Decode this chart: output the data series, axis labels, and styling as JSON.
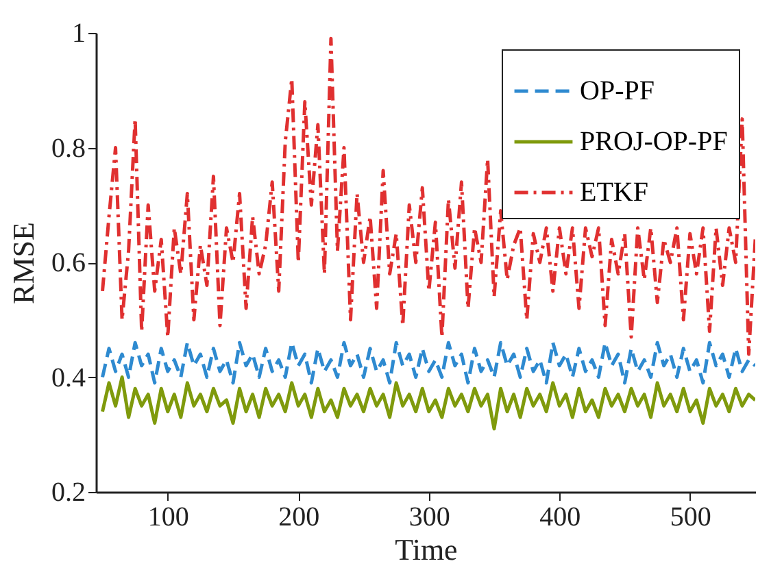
{
  "chart_data": {
    "type": "line",
    "xlabel": "Time",
    "ylabel": "RMSE",
    "x": [
      50,
      55,
      60,
      65,
      70,
      75,
      80,
      85,
      90,
      95,
      100,
      105,
      110,
      115,
      120,
      125,
      130,
      135,
      140,
      145,
      150,
      155,
      160,
      165,
      170,
      175,
      180,
      185,
      190,
      195,
      200,
      205,
      210,
      215,
      220,
      225,
      230,
      235,
      240,
      245,
      250,
      255,
      260,
      265,
      270,
      275,
      280,
      285,
      290,
      295,
      300,
      305,
      310,
      315,
      320,
      325,
      330,
      335,
      340,
      345,
      350,
      355,
      360,
      365,
      370,
      375,
      380,
      385,
      390,
      395,
      400,
      405,
      410,
      415,
      420,
      425,
      430,
      435,
      440,
      445,
      450,
      455,
      460,
      465,
      470,
      475,
      480,
      485,
      490,
      495,
      500,
      505,
      510,
      515,
      520,
      525,
      530,
      535,
      540,
      545,
      550
    ],
    "series": [
      {
        "name": "OP-PF",
        "color": "#2e8ad0",
        "line_style": "dashed",
        "values": [
          0.4,
          0.45,
          0.41,
          0.44,
          0.4,
          0.46,
          0.42,
          0.44,
          0.39,
          0.45,
          0.41,
          0.43,
          0.4,
          0.46,
          0.42,
          0.44,
          0.4,
          0.45,
          0.41,
          0.43,
          0.39,
          0.46,
          0.42,
          0.44,
          0.4,
          0.45,
          0.41,
          0.43,
          0.4,
          0.46,
          0.42,
          0.44,
          0.39,
          0.45,
          0.41,
          0.43,
          0.4,
          0.46,
          0.42,
          0.44,
          0.4,
          0.45,
          0.41,
          0.43,
          0.39,
          0.46,
          0.42,
          0.44,
          0.4,
          0.45,
          0.41,
          0.43,
          0.4,
          0.46,
          0.42,
          0.44,
          0.39,
          0.45,
          0.41,
          0.43,
          0.4,
          0.46,
          0.42,
          0.44,
          0.4,
          0.45,
          0.41,
          0.43,
          0.39,
          0.46,
          0.42,
          0.44,
          0.4,
          0.45,
          0.41,
          0.43,
          0.4,
          0.46,
          0.42,
          0.44,
          0.39,
          0.45,
          0.41,
          0.43,
          0.4,
          0.46,
          0.42,
          0.44,
          0.4,
          0.45,
          0.41,
          0.43,
          0.39,
          0.46,
          0.42,
          0.44,
          0.4,
          0.45,
          0.41,
          0.43,
          0.42
        ]
      },
      {
        "name": "PROJ-OP-PF",
        "color": "#7f9a0c",
        "line_style": "solid",
        "values": [
          0.34,
          0.39,
          0.35,
          0.4,
          0.33,
          0.38,
          0.35,
          0.37,
          0.32,
          0.38,
          0.34,
          0.37,
          0.33,
          0.39,
          0.35,
          0.37,
          0.34,
          0.38,
          0.35,
          0.36,
          0.32,
          0.38,
          0.34,
          0.37,
          0.33,
          0.38,
          0.35,
          0.37,
          0.34,
          0.39,
          0.35,
          0.37,
          0.33,
          0.38,
          0.34,
          0.36,
          0.33,
          0.38,
          0.35,
          0.37,
          0.34,
          0.38,
          0.35,
          0.37,
          0.33,
          0.39,
          0.35,
          0.37,
          0.34,
          0.38,
          0.34,
          0.36,
          0.33,
          0.38,
          0.35,
          0.37,
          0.34,
          0.38,
          0.35,
          0.37,
          0.31,
          0.38,
          0.34,
          0.37,
          0.33,
          0.38,
          0.35,
          0.37,
          0.34,
          0.39,
          0.35,
          0.37,
          0.33,
          0.38,
          0.34,
          0.36,
          0.33,
          0.38,
          0.35,
          0.37,
          0.34,
          0.38,
          0.35,
          0.37,
          0.33,
          0.39,
          0.35,
          0.37,
          0.34,
          0.38,
          0.34,
          0.36,
          0.32,
          0.38,
          0.35,
          0.37,
          0.34,
          0.38,
          0.35,
          0.37,
          0.36
        ]
      },
      {
        "name": "ETKF",
        "color": "#e03030",
        "line_style": "dashdot",
        "values": [
          0.55,
          0.68,
          0.8,
          0.5,
          0.62,
          0.85,
          0.48,
          0.7,
          0.55,
          0.64,
          0.47,
          0.66,
          0.58,
          0.72,
          0.5,
          0.63,
          0.56,
          0.75,
          0.49,
          0.66,
          0.6,
          0.72,
          0.52,
          0.68,
          0.58,
          0.63,
          0.74,
          0.55,
          0.81,
          0.92,
          0.6,
          0.88,
          0.7,
          0.84,
          0.58,
          0.99,
          0.62,
          0.8,
          0.5,
          0.72,
          0.6,
          0.68,
          0.52,
          0.76,
          0.58,
          0.65,
          0.49,
          0.7,
          0.6,
          0.73,
          0.55,
          0.67,
          0.47,
          0.71,
          0.59,
          0.74,
          0.52,
          0.66,
          0.6,
          0.78,
          0.54,
          0.69,
          0.57,
          0.63,
          0.66,
          0.5,
          0.65,
          0.6,
          0.66,
          0.55,
          0.66,
          0.58,
          0.66,
          0.52,
          0.66,
          0.61,
          0.66,
          0.49,
          0.64,
          0.58,
          0.65,
          0.47,
          0.66,
          0.57,
          0.66,
          0.53,
          0.64,
          0.6,
          0.66,
          0.5,
          0.65,
          0.58,
          0.66,
          0.48,
          0.66,
          0.56,
          0.66,
          0.6,
          0.85,
          0.44,
          0.64
        ]
      }
    ],
    "xlim": [
      45,
      550
    ],
    "xticks": [
      100,
      200,
      300,
      400,
      500
    ],
    "ylim": [
      0.2,
      1
    ],
    "yticks": [
      0.2,
      0.4,
      0.6,
      0.8,
      {
        "value": 1,
        "label": "1"
      }
    ],
    "legend": "top right",
    "grid": false
  }
}
